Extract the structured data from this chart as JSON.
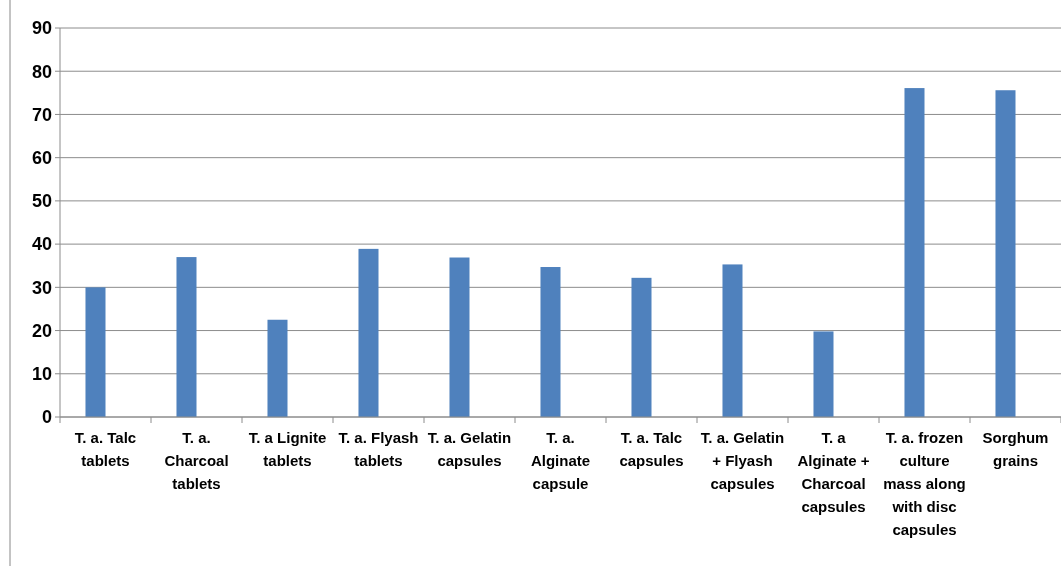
{
  "chart_data": {
    "type": "bar",
    "categories": [
      "T. a. Talc tablets",
      "T. a. Charcoal tablets",
      "T. a Lignite tablets",
      "T. a. Flyash tablets",
      "T. a. Gelatin capsules",
      "T. a. Alginate capsule",
      "T. a. Talc capsules",
      "T. a. Gelatin + Flyash capsules",
      "T. a Alginate + Charcoal capsules",
      "T. a. frozen culture mass along with disc capsules",
      "Sorghum grains"
    ],
    "series": [
      {
        "color": "#4f81bd",
        "values": [
          30.0,
          37.0,
          22.5,
          38.9,
          36.9,
          34.7,
          32.2,
          35.3,
          19.8,
          76.1,
          75.6
        ]
      }
    ],
    "ylim": [
      0,
      90
    ],
    "yticks": [
      0,
      10,
      20,
      30,
      40,
      50,
      60,
      70,
      80,
      90
    ],
    "grid": "y"
  }
}
